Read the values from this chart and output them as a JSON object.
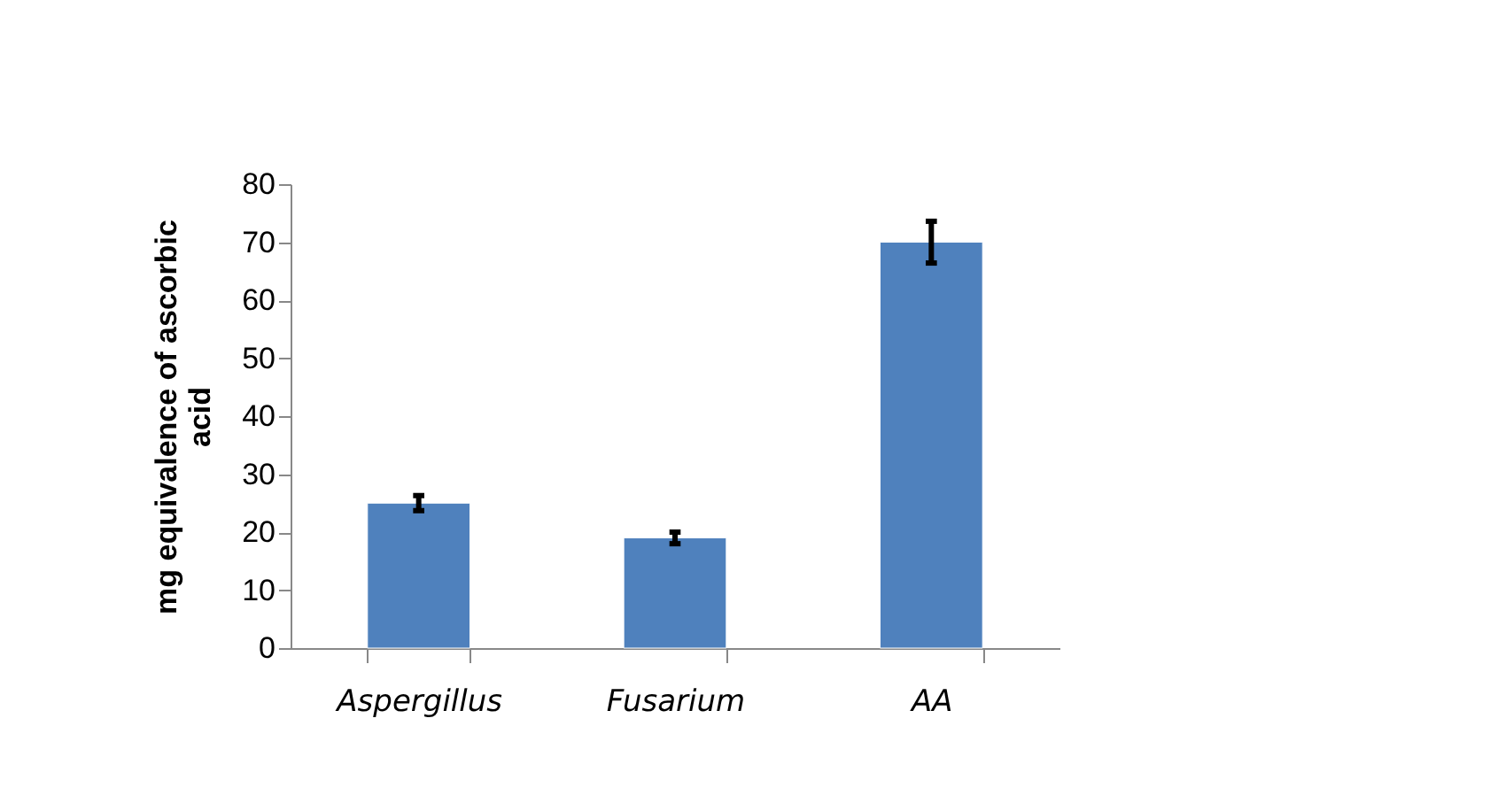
{
  "chart_data": {
    "type": "bar",
    "ylabel": "mg equivalence of ascorbic acid",
    "categories": [
      "Aspergillus",
      "Fusarium",
      "AA"
    ],
    "values": [
      25,
      19,
      70
    ],
    "errors": [
      1.3,
      1.0,
      3.6
    ],
    "color": "#4f81bd",
    "ylim": [
      0,
      80
    ],
    "yticks": [
      0,
      10,
      20,
      30,
      40,
      50,
      60,
      70,
      80
    ],
    "grid": false
  }
}
